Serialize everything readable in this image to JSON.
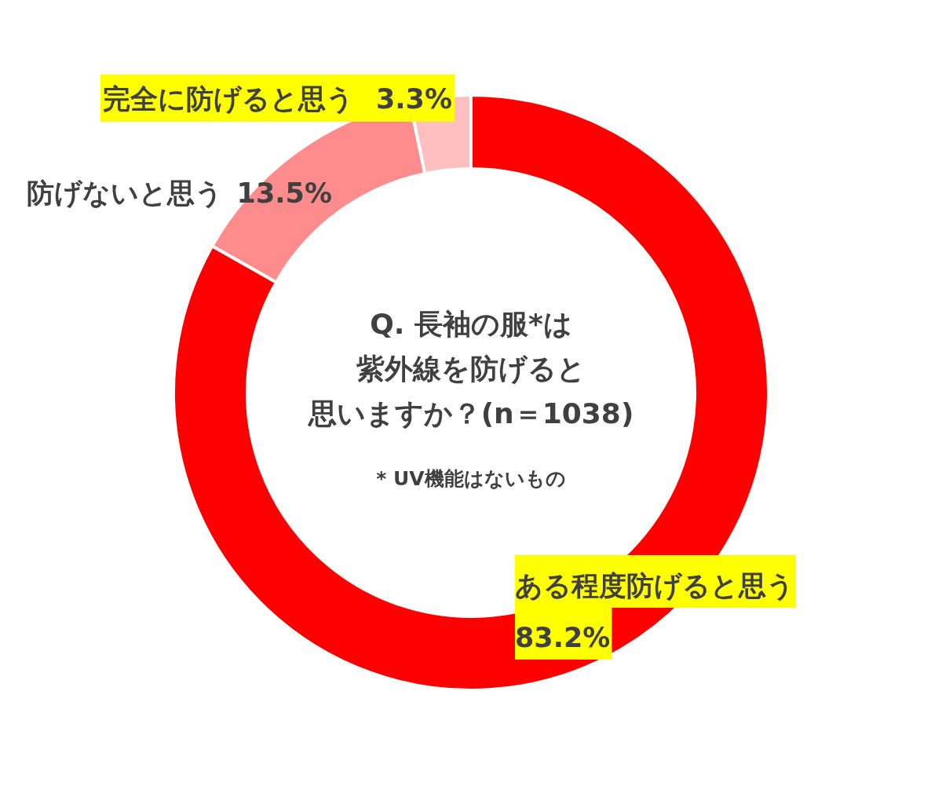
{
  "chart_data": {
    "type": "donut",
    "title": "Q. 長袖の服*は紫外線を防げると思いますか？(n＝1038)",
    "annotations": [
      "* UV機能はないもの"
    ],
    "categories": [
      "ある程度防げると思う",
      "防げないと思う",
      "完全に防げると思う"
    ],
    "values": [
      83.2,
      13.5,
      3.3
    ],
    "value_labels": [
      "83.2%",
      "13.5%",
      "3.3%"
    ],
    "colors": [
      "#ff0000",
      "#ff8c8c",
      "#ffbfbf"
    ]
  }
}
